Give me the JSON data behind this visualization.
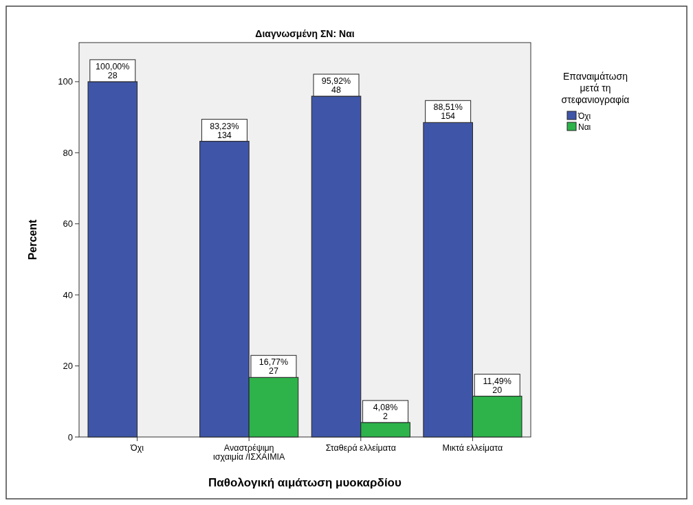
{
  "chart_data": {
    "type": "bar",
    "title": "Διαγνωσμένη ΣΝ: Ναι",
    "xlabel": "Παθολογική αιμάτωση μυοκαρδίου",
    "ylabel": "Percent",
    "legend_title": "Επαναιμάτωση\nμετά τη\nστεφανιογραφία",
    "categories": [
      "Όχι",
      "Αναστρέψιμη\nισχαιμία  /ΙΣΧΑΙΜΙΑ",
      "Σταθερά ελλείματα",
      "Μικτά ελλείματα"
    ],
    "series": [
      {
        "name": "Όχι",
        "color": "#3f56a8",
        "values": [
          100,
          83.23,
          95.92,
          88.51
        ],
        "value_labels": [
          "100,00%\n28",
          "83,23%\n134",
          "95,92%\n48",
          "88,51%\n154"
        ]
      },
      {
        "name": "Ναι",
        "color": "#2db34a",
        "values": [
          null,
          16.77,
          4.08,
          11.49
        ],
        "value_labels": [
          null,
          "16,77%\n27",
          "4,08%\n2",
          "11,49%\n20"
        ]
      }
    ],
    "ylim": [
      0,
      111
    ],
    "yticks": [
      0,
      20,
      40,
      60,
      80,
      100
    ],
    "grid": false,
    "legend": "right"
  }
}
